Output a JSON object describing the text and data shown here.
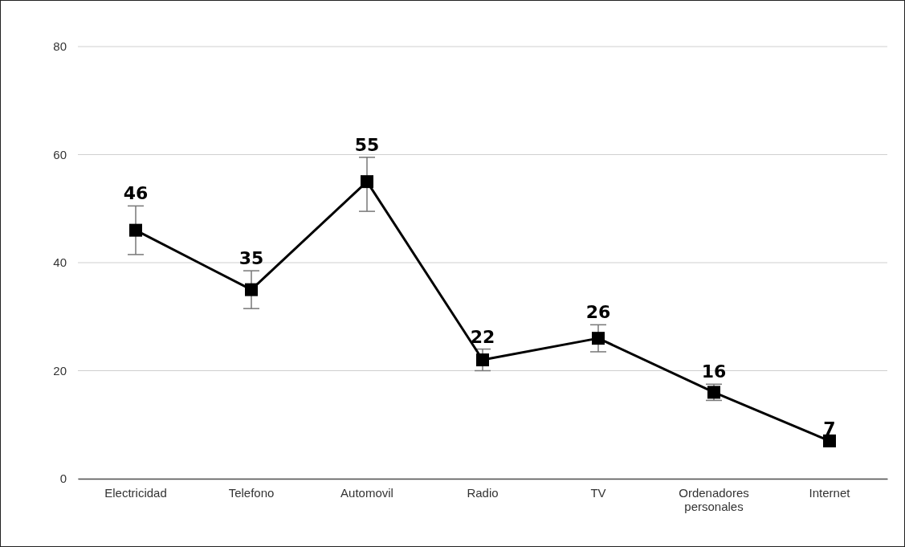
{
  "chart_data": {
    "type": "line",
    "categories": [
      "Electricidad",
      "Telefono",
      "Automovil",
      "Radio",
      "TV",
      "Ordenadores personales",
      "Internet"
    ],
    "series": [
      {
        "color": "#000000",
        "values": [
          46,
          35,
          55,
          22,
          26,
          16,
          7
        ],
        "errors": [
          [
            41.5,
            50.5
          ],
          [
            31.5,
            38.5
          ],
          [
            49.5,
            59.5
          ],
          [
            20,
            24
          ],
          [
            23.5,
            28.5
          ],
          [
            14.5,
            17.5
          ],
          null
        ]
      }
    ],
    "ylim": [
      0,
      80
    ],
    "yticks": [
      0,
      20,
      40,
      60,
      80
    ],
    "grid": "y",
    "marker": "square",
    "line_style": "solid",
    "data_labels": true
  }
}
